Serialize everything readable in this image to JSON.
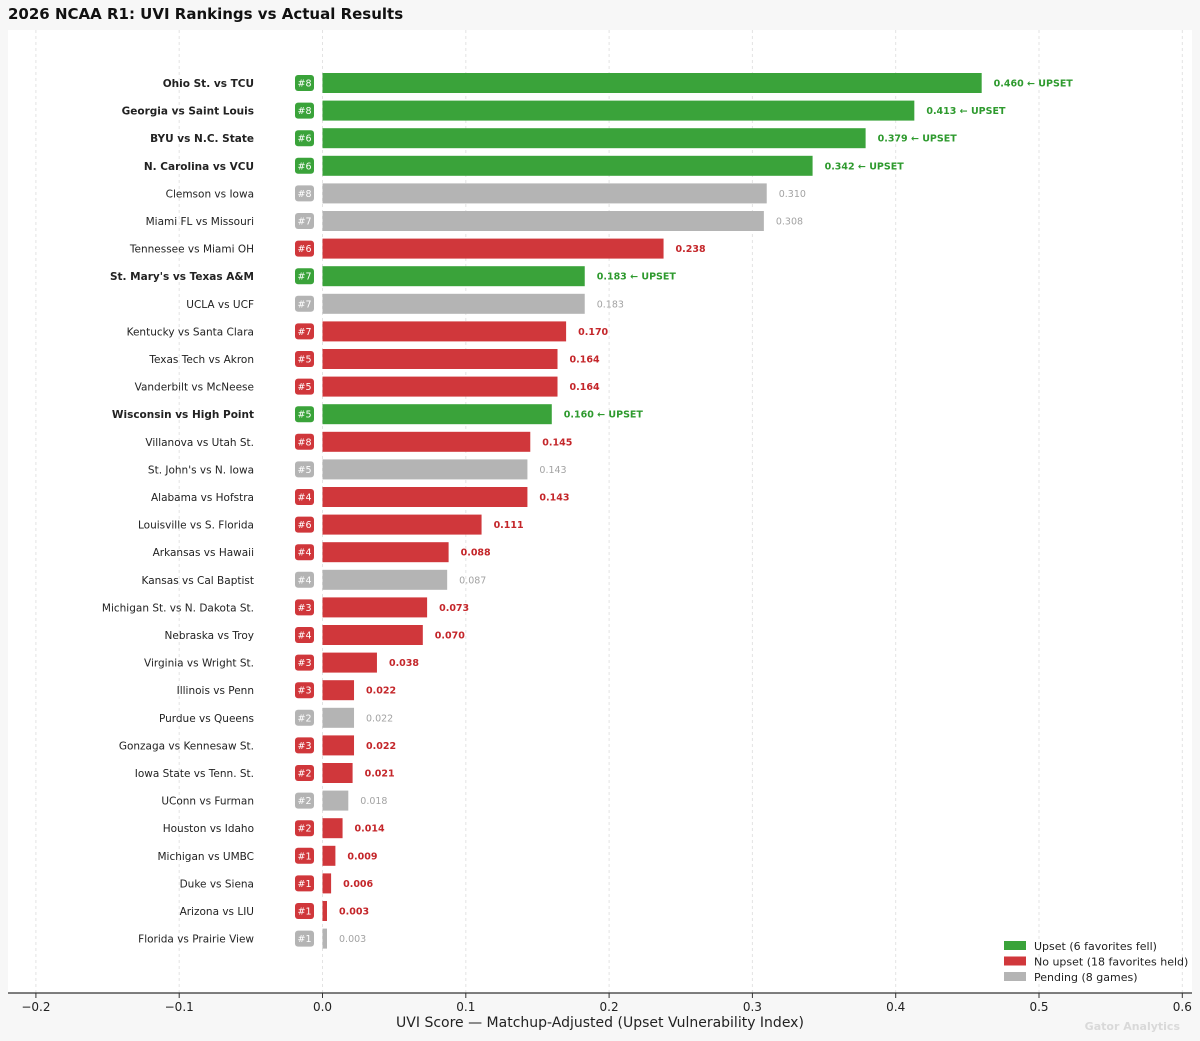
{
  "colors": {
    "upset": "#3aa33a",
    "no_upset": "#d0373b",
    "pending": "#b4b4b4",
    "upset_text": "#2e9a2e",
    "no_upset_text": "#c4262a",
    "pending_text": "#a3a3a3"
  },
  "watermark": "Gator Analytics",
  "chart_data": {
    "type": "bar",
    "orientation": "horizontal",
    "title": "2026 NCAA R1: UVI Rankings vs Actual Results",
    "xlabel": "UVI Score — Matchup-Adjusted (Upset Vulnerability Index)",
    "xlim": [
      -0.2,
      0.6
    ],
    "xticks": [
      -0.2,
      -0.1,
      0.0,
      0.1,
      0.2,
      0.3,
      0.4,
      0.5,
      0.6
    ],
    "xtick_labels": [
      "−0.2",
      "−0.1",
      "0.0",
      "0.1",
      "0.2",
      "0.3",
      "0.4",
      "0.5",
      "0.6"
    ],
    "grid": "vertical dashed",
    "legend_position": "bottom-right",
    "legend": [
      {
        "status": "upset",
        "label": "Upset (6 favorites fell)"
      },
      {
        "status": "no_upset",
        "label": "No upset (18 favorites held)"
      },
      {
        "status": "pending",
        "label": "Pending (8 games)"
      }
    ],
    "games": [
      {
        "game": "Ohio St. vs TCU",
        "seed": "#8",
        "value": 0.46,
        "label": "0.460 ← UPSET",
        "status": "upset"
      },
      {
        "game": "Georgia vs Saint Louis",
        "seed": "#8",
        "value": 0.413,
        "label": "0.413 ← UPSET",
        "status": "upset"
      },
      {
        "game": "BYU vs N.C. State",
        "seed": "#6",
        "value": 0.379,
        "label": "0.379 ← UPSET",
        "status": "upset"
      },
      {
        "game": "N. Carolina vs VCU",
        "seed": "#6",
        "value": 0.342,
        "label": "0.342 ← UPSET",
        "status": "upset"
      },
      {
        "game": "Clemson vs Iowa",
        "seed": "#8",
        "value": 0.31,
        "label": "0.310",
        "status": "pending"
      },
      {
        "game": "Miami FL vs Missouri",
        "seed": "#7",
        "value": 0.308,
        "label": "0.308",
        "status": "pending"
      },
      {
        "game": "Tennessee vs Miami OH",
        "seed": "#6",
        "value": 0.238,
        "label": "0.238",
        "status": "no_upset"
      },
      {
        "game": "St. Mary's vs Texas A&M",
        "seed": "#7",
        "value": 0.183,
        "label": "0.183 ← UPSET",
        "status": "upset"
      },
      {
        "game": "UCLA vs UCF",
        "seed": "#7",
        "value": 0.183,
        "label": "0.183",
        "status": "pending"
      },
      {
        "game": "Kentucky vs Santa Clara",
        "seed": "#7",
        "value": 0.17,
        "label": "0.170",
        "status": "no_upset"
      },
      {
        "game": "Texas Tech vs Akron",
        "seed": "#5",
        "value": 0.164,
        "label": "0.164",
        "status": "no_upset"
      },
      {
        "game": "Vanderbilt vs McNeese",
        "seed": "#5",
        "value": 0.164,
        "label": "0.164",
        "status": "no_upset"
      },
      {
        "game": "Wisconsin vs High Point",
        "seed": "#5",
        "value": 0.16,
        "label": "0.160 ← UPSET",
        "status": "upset"
      },
      {
        "game": "Villanova vs Utah St.",
        "seed": "#8",
        "value": 0.145,
        "label": "0.145",
        "status": "no_upset"
      },
      {
        "game": "St. John's vs N. Iowa",
        "seed": "#5",
        "value": 0.143,
        "label": "0.143",
        "status": "pending"
      },
      {
        "game": "Alabama vs Hofstra",
        "seed": "#4",
        "value": 0.143,
        "label": "0.143",
        "status": "no_upset"
      },
      {
        "game": "Louisville vs S. Florida",
        "seed": "#6",
        "value": 0.111,
        "label": "0.111",
        "status": "no_upset"
      },
      {
        "game": "Arkansas vs Hawaii",
        "seed": "#4",
        "value": 0.088,
        "label": "0.088",
        "status": "no_upset"
      },
      {
        "game": "Kansas vs Cal Baptist",
        "seed": "#4",
        "value": 0.087,
        "label": "0.087",
        "status": "pending"
      },
      {
        "game": "Michigan St. vs N. Dakota St.",
        "seed": "#3",
        "value": 0.073,
        "label": "0.073",
        "status": "no_upset"
      },
      {
        "game": "Nebraska vs Troy",
        "seed": "#4",
        "value": 0.07,
        "label": "0.070",
        "status": "no_upset"
      },
      {
        "game": "Virginia vs Wright St.",
        "seed": "#3",
        "value": 0.038,
        "label": "0.038",
        "status": "no_upset"
      },
      {
        "game": "Illinois vs Penn",
        "seed": "#3",
        "value": 0.022,
        "label": "0.022",
        "status": "no_upset"
      },
      {
        "game": "Purdue vs Queens",
        "seed": "#2",
        "value": 0.022,
        "label": "0.022",
        "status": "pending"
      },
      {
        "game": "Gonzaga vs Kennesaw St.",
        "seed": "#3",
        "value": 0.022,
        "label": "0.022",
        "status": "no_upset"
      },
      {
        "game": "Iowa State vs Tenn. St.",
        "seed": "#2",
        "value": 0.021,
        "label": "0.021",
        "status": "no_upset"
      },
      {
        "game": "UConn vs Furman",
        "seed": "#2",
        "value": 0.018,
        "label": "0.018",
        "status": "pending"
      },
      {
        "game": "Houston vs Idaho",
        "seed": "#2",
        "value": 0.014,
        "label": "0.014",
        "status": "no_upset"
      },
      {
        "game": "Michigan vs UMBC",
        "seed": "#1",
        "value": 0.009,
        "label": "0.009",
        "status": "no_upset"
      },
      {
        "game": "Duke vs Siena",
        "seed": "#1",
        "value": 0.006,
        "label": "0.006",
        "status": "no_upset"
      },
      {
        "game": "Arizona vs LIU",
        "seed": "#1",
        "value": 0.003,
        "label": "0.003",
        "status": "no_upset"
      },
      {
        "game": "Florida vs Prairie View",
        "seed": "#1",
        "value": 0.003,
        "label": "0.003",
        "status": "pending"
      }
    ]
  }
}
